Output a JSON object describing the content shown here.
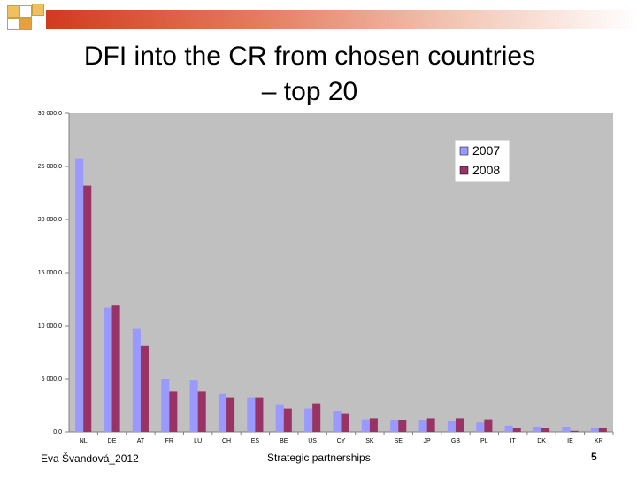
{
  "slide": {
    "title_line1": "DFI into the CR from chosen countries",
    "title_line2": "– top 20",
    "footer_author": "Eva Švandová_2012",
    "footer_topic": "Strategic partnerships",
    "page_number": "5"
  },
  "colors": {
    "series_2007": "#9999ff",
    "series_2008": "#993366",
    "plot_background": "#c0c0c0",
    "accent": "#d23a1f"
  },
  "chart_data": {
    "type": "bar",
    "title": "",
    "xlabel": "",
    "ylabel": "",
    "ylim": [
      0,
      30000
    ],
    "yticks": [
      "0,0",
      "5 000,0",
      "10 000,0",
      "15 000,0",
      "20 000,0",
      "25 000,0",
      "30 000,0"
    ],
    "ytick_values": [
      0,
      5000,
      10000,
      15000,
      20000,
      25000,
      30000
    ],
    "categories": [
      "NL",
      "DE",
      "AT",
      "FR",
      "LU",
      "CH",
      "ES",
      "BE",
      "US",
      "CY",
      "SK",
      "SE",
      "JP",
      "GB",
      "PL",
      "IT",
      "DK",
      "IE",
      "KR"
    ],
    "series": [
      {
        "name": "2007",
        "values": [
          25700,
          11700,
          9700,
          5000,
          4900,
          3600,
          3200,
          2600,
          2200,
          2000,
          1200,
          1100,
          1100,
          1000,
          900,
          600,
          500,
          500,
          400
        ]
      },
      {
        "name": "2008",
        "values": [
          23200,
          11900,
          8100,
          3800,
          3800,
          3200,
          3200,
          2200,
          2700,
          1700,
          1300,
          1100,
          1300,
          1300,
          1200,
          400,
          400,
          100,
          400
        ]
      }
    ],
    "grid": false,
    "legend_position": "top-right"
  }
}
